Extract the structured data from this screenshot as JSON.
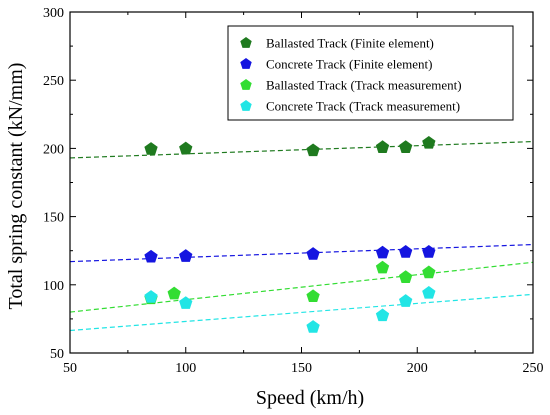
{
  "chart_data": {
    "type": "scatter",
    "title": "",
    "xlabel": "Speed (km/h)",
    "ylabel": "Total spring constant (kN/mm)",
    "xlim": [
      50,
      250
    ],
    "ylim": [
      50,
      300
    ],
    "xticks": [
      50,
      100,
      150,
      200,
      250
    ],
    "yticks": [
      50,
      100,
      150,
      200,
      250,
      300
    ],
    "legend_position": "top-right",
    "grid": false,
    "series": [
      {
        "name": "Ballasted Track (Finite element)",
        "color": "#1f7a1f",
        "marker": "pentagon",
        "x": [
          85,
          100,
          155,
          185,
          195,
          205
        ],
        "y": [
          199.5,
          199.8,
          198.5,
          200.8,
          200.8,
          204.0
        ],
        "trend": {
          "x": [
            50,
            250
          ],
          "y": [
            193,
            205
          ]
        }
      },
      {
        "name": "Concrete Track (Finite element)",
        "color": "#1515e0",
        "marker": "pentagon",
        "x": [
          85,
          100,
          155,
          185,
          195,
          205
        ],
        "y": [
          120.5,
          121.0,
          122.5,
          123.5,
          124.0,
          124.0
        ],
        "trend": {
          "x": [
            50,
            250
          ],
          "y": [
            117,
            129.5
          ]
        }
      },
      {
        "name": "Ballasted Track (Track measurement)",
        "color": "#33dd33",
        "marker": "pentagon",
        "x": [
          85,
          95,
          155,
          185,
          195,
          205
        ],
        "y": [
          90,
          93.5,
          91.5,
          112.5,
          105.5,
          109
        ],
        "trend": {
          "x": [
            50,
            250
          ],
          "y": [
            80,
            116.5
          ]
        }
      },
      {
        "name": "Concrete Track (Track measurement)",
        "color": "#22e5e5",
        "marker": "pentagon",
        "x": [
          85,
          100,
          155,
          185,
          195,
          205
        ],
        "y": [
          91,
          86.5,
          69,
          77.5,
          88,
          94
        ],
        "trend": {
          "x": [
            50,
            250
          ],
          "y": [
            66.5,
            93
          ]
        }
      }
    ]
  }
}
